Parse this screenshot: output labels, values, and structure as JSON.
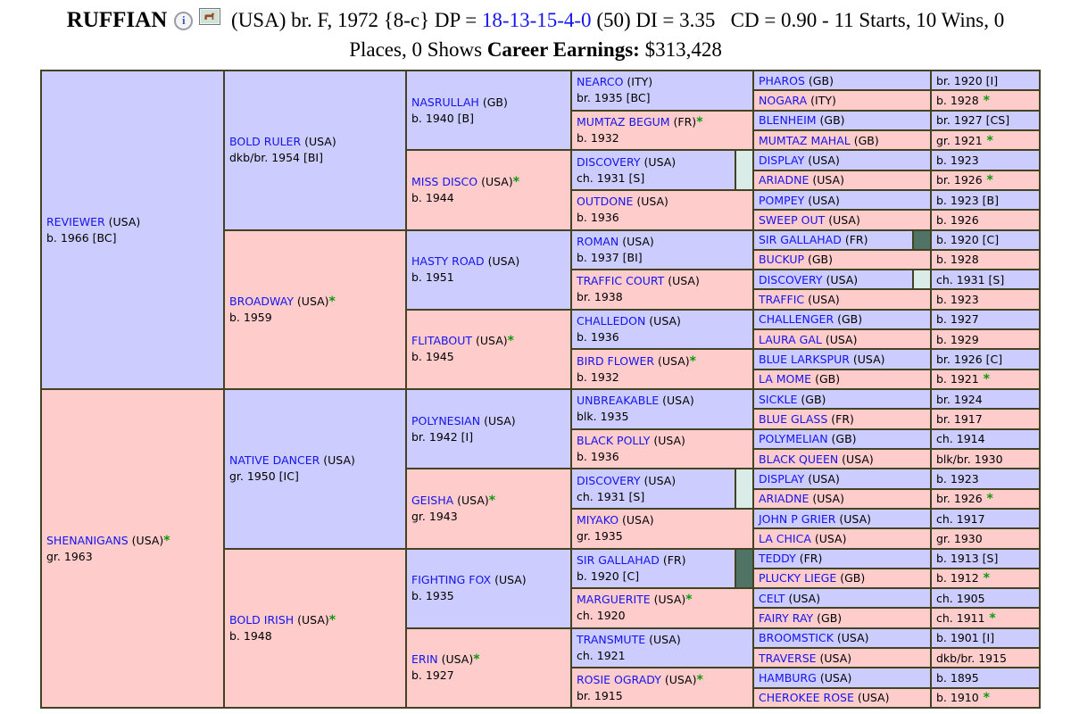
{
  "colors": {
    "male_bg": "#ccccff",
    "female_bg": "#ffcccc",
    "table_border": "#434324",
    "link_blue": "#1414ee",
    "star_green": "#0a9a0a",
    "marker_light": "#d9ece7",
    "marker_dark": "#4f7365"
  },
  "header": {
    "name": "RUFFIAN",
    "segment_a": " (USA) br. F, 1972 {8-c} DP = ",
    "dp_link": "18-13-15-4-0",
    "segment_b": " (50) DI = 3.35   CD = 0.90 - 11 Starts, 10 Wins, 0",
    "line2_prefix": "Places, 0 Shows ",
    "earnings_label": "Career Earnings:",
    "earnings_value": " $313,428",
    "icons": [
      "info-icon",
      "photo-icon"
    ]
  },
  "pedigree": {
    "gen1": [
      {
        "name": "REVIEWER",
        "country": "(USA)",
        "star": false,
        "details": "b. 1966 [BC]",
        "sex": "m",
        "marker": null
      },
      {
        "name": "SHENANIGANS",
        "country": "(USA)",
        "star": true,
        "details": "gr. 1963",
        "sex": "f",
        "marker": null
      }
    ],
    "gen2": [
      {
        "name": "BOLD RULER",
        "country": "(USA)",
        "star": false,
        "details": "dkb/br. 1954 [BI]",
        "sex": "m",
        "marker": null
      },
      {
        "name": "BROADWAY",
        "country": "(USA)",
        "star": true,
        "details": "b. 1959",
        "sex": "f",
        "marker": null
      },
      {
        "name": "NATIVE DANCER",
        "country": "(USA)",
        "star": false,
        "details": "gr. 1950 [IC]",
        "sex": "m",
        "marker": null
      },
      {
        "name": "BOLD IRISH",
        "country": "(USA)",
        "star": true,
        "details": "b. 1948",
        "sex": "f",
        "marker": null
      }
    ],
    "gen3": [
      {
        "name": "NASRULLAH",
        "country": "(GB)",
        "star": false,
        "details": "b. 1940 [B]",
        "sex": "m",
        "marker": null
      },
      {
        "name": "MISS DISCO",
        "country": "(USA)",
        "star": true,
        "details": "b. 1944",
        "sex": "f",
        "marker": null
      },
      {
        "name": "HASTY ROAD",
        "country": "(USA)",
        "star": false,
        "details": "b. 1951",
        "sex": "m",
        "marker": null
      },
      {
        "name": "FLITABOUT",
        "country": "(USA)",
        "star": true,
        "details": "b. 1945",
        "sex": "f",
        "marker": null
      },
      {
        "name": "POLYNESIAN",
        "country": "(USA)",
        "star": false,
        "details": "br. 1942 [I]",
        "sex": "m",
        "marker": null
      },
      {
        "name": "GEISHA",
        "country": "(USA)",
        "star": true,
        "details": "gr. 1943",
        "sex": "f",
        "marker": null
      },
      {
        "name": "FIGHTING FOX",
        "country": "(USA)",
        "star": false,
        "details": "b. 1935",
        "sex": "m",
        "marker": null
      },
      {
        "name": "ERIN",
        "country": "(USA)",
        "star": true,
        "details": "b. 1927",
        "sex": "f",
        "marker": null
      }
    ],
    "gen4": [
      {
        "name": "NEARCO",
        "country": "(ITY)",
        "star": false,
        "details": "br. 1935 [BC]",
        "sex": "m",
        "marker": null
      },
      {
        "name": "MUMTAZ BEGUM",
        "country": "(FR)",
        "star": true,
        "details": "b. 1932",
        "sex": "f",
        "marker": null
      },
      {
        "name": "DISCOVERY",
        "country": "(USA)",
        "star": false,
        "details": "ch. 1931 [S]",
        "sex": "m",
        "marker": "light"
      },
      {
        "name": "OUTDONE",
        "country": "(USA)",
        "star": false,
        "details": "b. 1936",
        "sex": "f",
        "marker": null
      },
      {
        "name": "ROMAN",
        "country": "(USA)",
        "star": false,
        "details": "b. 1937 [BI]",
        "sex": "m",
        "marker": null
      },
      {
        "name": "TRAFFIC COURT",
        "country": "(USA)",
        "star": false,
        "details": "br. 1938",
        "sex": "f",
        "marker": null
      },
      {
        "name": "CHALLEDON",
        "country": "(USA)",
        "star": false,
        "details": "b. 1936",
        "sex": "m",
        "marker": null
      },
      {
        "name": "BIRD FLOWER",
        "country": "(USA)",
        "star": true,
        "details": "b. 1932",
        "sex": "f",
        "marker": null
      },
      {
        "name": "UNBREAKABLE",
        "country": "(USA)",
        "star": false,
        "details": "blk. 1935",
        "sex": "m",
        "marker": null
      },
      {
        "name": "BLACK POLLY",
        "country": "(USA)",
        "star": false,
        "details": "b. 1936",
        "sex": "f",
        "marker": null
      },
      {
        "name": "DISCOVERY",
        "country": "(USA)",
        "star": false,
        "details": "ch. 1931 [S]",
        "sex": "m",
        "marker": "light"
      },
      {
        "name": "MIYAKO",
        "country": "(USA)",
        "star": false,
        "details": "gr. 1935",
        "sex": "f",
        "marker": null
      },
      {
        "name": "SIR GALLAHAD",
        "country": "(FR)",
        "star": false,
        "details": "b. 1920 [C]",
        "sex": "m",
        "marker": "dark"
      },
      {
        "name": "MARGUERITE",
        "country": "(USA)",
        "star": true,
        "details": "ch. 1920",
        "sex": "f",
        "marker": null
      },
      {
        "name": "TRANSMUTE",
        "country": "(USA)",
        "star": false,
        "details": "ch. 1921",
        "sex": "m",
        "marker": null
      },
      {
        "name": "ROSIE OGRADY",
        "country": "(USA)",
        "star": true,
        "details": "br. 1915",
        "sex": "f",
        "marker": null
      }
    ],
    "gen5": [
      {
        "name": "PHAROS",
        "country": "(GB)",
        "sex": "m",
        "marker": null,
        "year": "br. 1920 [I]",
        "year_star": false
      },
      {
        "name": "NOGARA",
        "country": "(ITY)",
        "sex": "f",
        "marker": null,
        "year": "b. 1928",
        "year_star": true
      },
      {
        "name": "BLENHEIM",
        "country": "(GB)",
        "sex": "m",
        "marker": null,
        "year": "br. 1927 [CS]",
        "year_star": false
      },
      {
        "name": "MUMTAZ MAHAL",
        "country": "(GB)",
        "sex": "f",
        "marker": null,
        "year": "gr. 1921",
        "year_star": true
      },
      {
        "name": "DISPLAY",
        "country": "(USA)",
        "sex": "m",
        "marker": null,
        "year": "b. 1923",
        "year_star": false
      },
      {
        "name": "ARIADNE",
        "country": "(USA)",
        "sex": "f",
        "marker": null,
        "year": "br. 1926",
        "year_star": true
      },
      {
        "name": "POMPEY",
        "country": "(USA)",
        "sex": "m",
        "marker": null,
        "year": "b. 1923 [B]",
        "year_star": false
      },
      {
        "name": "SWEEP OUT",
        "country": "(USA)",
        "sex": "f",
        "marker": null,
        "year": "b. 1926",
        "year_star": false
      },
      {
        "name": "SIR GALLAHAD",
        "country": "(FR)",
        "sex": "m",
        "marker": "dark",
        "year": "b. 1920 [C]",
        "year_star": false
      },
      {
        "name": "BUCKUP",
        "country": "(GB)",
        "sex": "f",
        "marker": null,
        "year": "b. 1928",
        "year_star": false
      },
      {
        "name": "DISCOVERY",
        "country": "(USA)",
        "sex": "m",
        "marker": "light",
        "year": "ch. 1931 [S]",
        "year_star": false
      },
      {
        "name": "TRAFFIC",
        "country": "(USA)",
        "sex": "f",
        "marker": null,
        "year": "b. 1923",
        "year_star": false
      },
      {
        "name": "CHALLENGER",
        "country": "(GB)",
        "sex": "m",
        "marker": null,
        "year": "b. 1927",
        "year_star": false
      },
      {
        "name": "LAURA GAL",
        "country": "(USA)",
        "sex": "f",
        "marker": null,
        "year": "b. 1929",
        "year_star": false
      },
      {
        "name": "BLUE LARKSPUR",
        "country": "(USA)",
        "sex": "m",
        "marker": null,
        "year": "br. 1926 [C]",
        "year_star": false
      },
      {
        "name": "LA MOME",
        "country": "(GB)",
        "sex": "f",
        "marker": null,
        "year": "b. 1921",
        "year_star": true
      },
      {
        "name": "SICKLE",
        "country": "(GB)",
        "sex": "m",
        "marker": null,
        "year": "br. 1924",
        "year_star": false
      },
      {
        "name": "BLUE GLASS",
        "country": "(FR)",
        "sex": "f",
        "marker": null,
        "year": "br. 1917",
        "year_star": false
      },
      {
        "name": "POLYMELIAN",
        "country": "(GB)",
        "sex": "m",
        "marker": null,
        "year": "ch. 1914",
        "year_star": false
      },
      {
        "name": "BLACK QUEEN",
        "country": "(USA)",
        "sex": "f",
        "marker": null,
        "year": "blk/br. 1930",
        "year_star": false
      },
      {
        "name": "DISPLAY",
        "country": "(USA)",
        "sex": "m",
        "marker": null,
        "year": "b. 1923",
        "year_star": false
      },
      {
        "name": "ARIADNE",
        "country": "(USA)",
        "sex": "f",
        "marker": null,
        "year": "br. 1926",
        "year_star": true
      },
      {
        "name": "JOHN P GRIER",
        "country": "(USA)",
        "sex": "m",
        "marker": null,
        "year": "ch. 1917",
        "year_star": false
      },
      {
        "name": "LA CHICA",
        "country": "(USA)",
        "sex": "f",
        "marker": null,
        "year": "gr. 1930",
        "year_star": false
      },
      {
        "name": "TEDDY",
        "country": "(FR)",
        "sex": "m",
        "marker": null,
        "year": "b. 1913 [S]",
        "year_star": false
      },
      {
        "name": "PLUCKY LIEGE",
        "country": "(GB)",
        "sex": "f",
        "marker": null,
        "year": "b. 1912",
        "year_star": true
      },
      {
        "name": "CELT",
        "country": "(USA)",
        "sex": "m",
        "marker": null,
        "year": "ch. 1905",
        "year_star": false
      },
      {
        "name": "FAIRY RAY",
        "country": "(GB)",
        "sex": "f",
        "marker": null,
        "year": "ch. 1911",
        "year_star": true
      },
      {
        "name": "BROOMSTICK",
        "country": "(USA)",
        "sex": "m",
        "marker": null,
        "year": "b. 1901 [I]",
        "year_star": false
      },
      {
        "name": "TRAVERSE",
        "country": "(USA)",
        "sex": "f",
        "marker": null,
        "year": "dkb/br. 1915",
        "year_star": false
      },
      {
        "name": "HAMBURG",
        "country": "(USA)",
        "sex": "m",
        "marker": null,
        "year": "b. 1895",
        "year_star": false
      },
      {
        "name": "CHEROKEE ROSE",
        "country": "(USA)",
        "sex": "f",
        "marker": null,
        "year": "b. 1910",
        "year_star": true
      }
    ]
  }
}
